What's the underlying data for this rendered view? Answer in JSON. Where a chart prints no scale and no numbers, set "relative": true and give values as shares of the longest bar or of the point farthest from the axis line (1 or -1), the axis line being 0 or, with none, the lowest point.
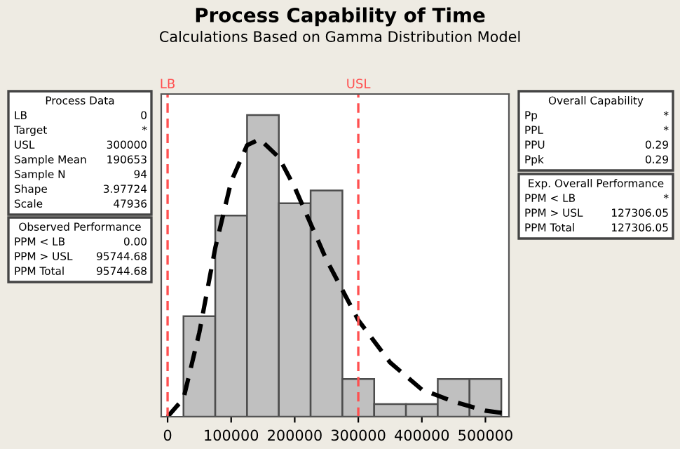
{
  "chart_data": {
    "type": "histogram",
    "title": "Process Capability of Time",
    "subtitle": "Calculations Based on Gamma Distribution Model",
    "relative": true,
    "bins": [
      25000,
      75000,
      125000,
      175000,
      225000,
      275000,
      325000,
      375000,
      425000,
      475000,
      525000
    ],
    "values": [
      0.333,
      0.667,
      1,
      0.708,
      0.75,
      0.125,
      0.042,
      0.042,
      0.125,
      0.125
    ],
    "color": "#c0c0c0",
    "series": [
      {
        "type": "line",
        "color": "#000000",
        "line_style": "dashed",
        "x": [
          0,
          25000,
          50000,
          75000,
          100000,
          125000,
          145000,
          175000,
          200000,
          250000,
          300000,
          350000,
          400000,
          450000,
          500000,
          535000
        ],
        "values": [
          0,
          0.06,
          0.28,
          0.56,
          0.78,
          0.9,
          0.92,
          0.86,
          0.76,
          0.52,
          0.32,
          0.18,
          0.09,
          0.05,
          0.02,
          0.01
        ]
      }
    ],
    "xlim": [
      -10000,
      537000
    ],
    "xticks": [
      0,
      100000,
      200000,
      300000,
      400000,
      500000
    ],
    "ref_lines": [
      {
        "axis": "x",
        "value": 0,
        "label": "LB",
        "color": "#ff5050",
        "line_style": "dashed"
      },
      {
        "axis": "x",
        "value": 300000,
        "label": "USL",
        "color": "#ff5050",
        "line_style": "dashed"
      }
    ],
    "annotations": [
      "Process Data\nLB 0\nTarget *\nUSL 300000\nSample Mean 190653\nSample N 94\nShape 3.97724\nScale 47936",
      "Observed Performance\nPPM < LB 0.00\nPPM > USL 95744.68\nPPM Total 95744.68",
      "Overall Capability\nPp *\nPPL *\nPPU 0.29\nPpk 0.29",
      "Exp. Overall Performance\nPPM < LB *\nPPM > USL 127306.05\nPPM Total 127306.05"
    ],
    "grid": false,
    "legend": false
  }
}
